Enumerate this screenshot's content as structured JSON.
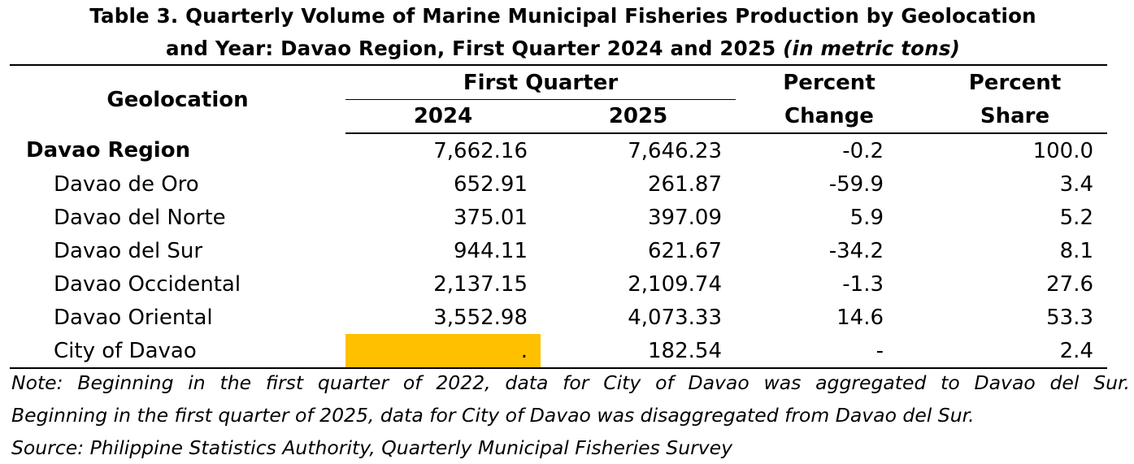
{
  "title": {
    "line1": "Table 3. Quarterly Volume of Marine Municipal Fisheries Production by Geolocation",
    "line2_main": "and Year: Davao Region, First Quarter 2024 and 2025 ",
    "line2_unit": "(in metric tons)"
  },
  "headers": {
    "geolocation": "Geolocation",
    "first_quarter": "First Quarter",
    "y2024": "2024",
    "y2025": "2025",
    "percent_change_1": "Percent",
    "percent_change_2": "Change",
    "percent_share_1": "Percent",
    "percent_share_2": "Share"
  },
  "rows": [
    {
      "geo": "Davao Region",
      "v2024": "7,662.16",
      "v2025": "7,646.23",
      "change": "-0.2",
      "share": "100.0"
    },
    {
      "geo": "Davao de Oro",
      "v2024": "652.91",
      "v2025": "261.87",
      "change": "-59.9",
      "share": "3.4"
    },
    {
      "geo": "Davao del Norte",
      "v2024": "375.01",
      "v2025": "397.09",
      "change": "5.9",
      "share": "5.2"
    },
    {
      "geo": "Davao del Sur",
      "v2024": "944.11",
      "v2025": "621.67",
      "change": "-34.2",
      "share": "8.1"
    },
    {
      "geo": "Davao Occidental",
      "v2024": "2,137.15",
      "v2025": "2,109.74",
      "change": "-1.3",
      "share": "27.6"
    },
    {
      "geo": "Davao Oriental",
      "v2024": "3,552.98",
      "v2025": "4,073.33",
      "change": "14.6",
      "share": "53.3"
    },
    {
      "geo": "City of Davao",
      "v2024": ".",
      "v2025": "182.54",
      "change": "-",
      "share": "2.4"
    }
  ],
  "highlight_color": "#ffc000",
  "notes": {
    "note1": "Note: Beginning in the first quarter of 2022, data for City of Davao was aggregated to Davao del Sur.",
    "note2": "Beginning in the first quarter of 2025, data for City of Davao was disaggregated from Davao del Sur.",
    "source": "Source: Philippine Statistics Authority, Quarterly Municipal Fisheries Survey"
  }
}
